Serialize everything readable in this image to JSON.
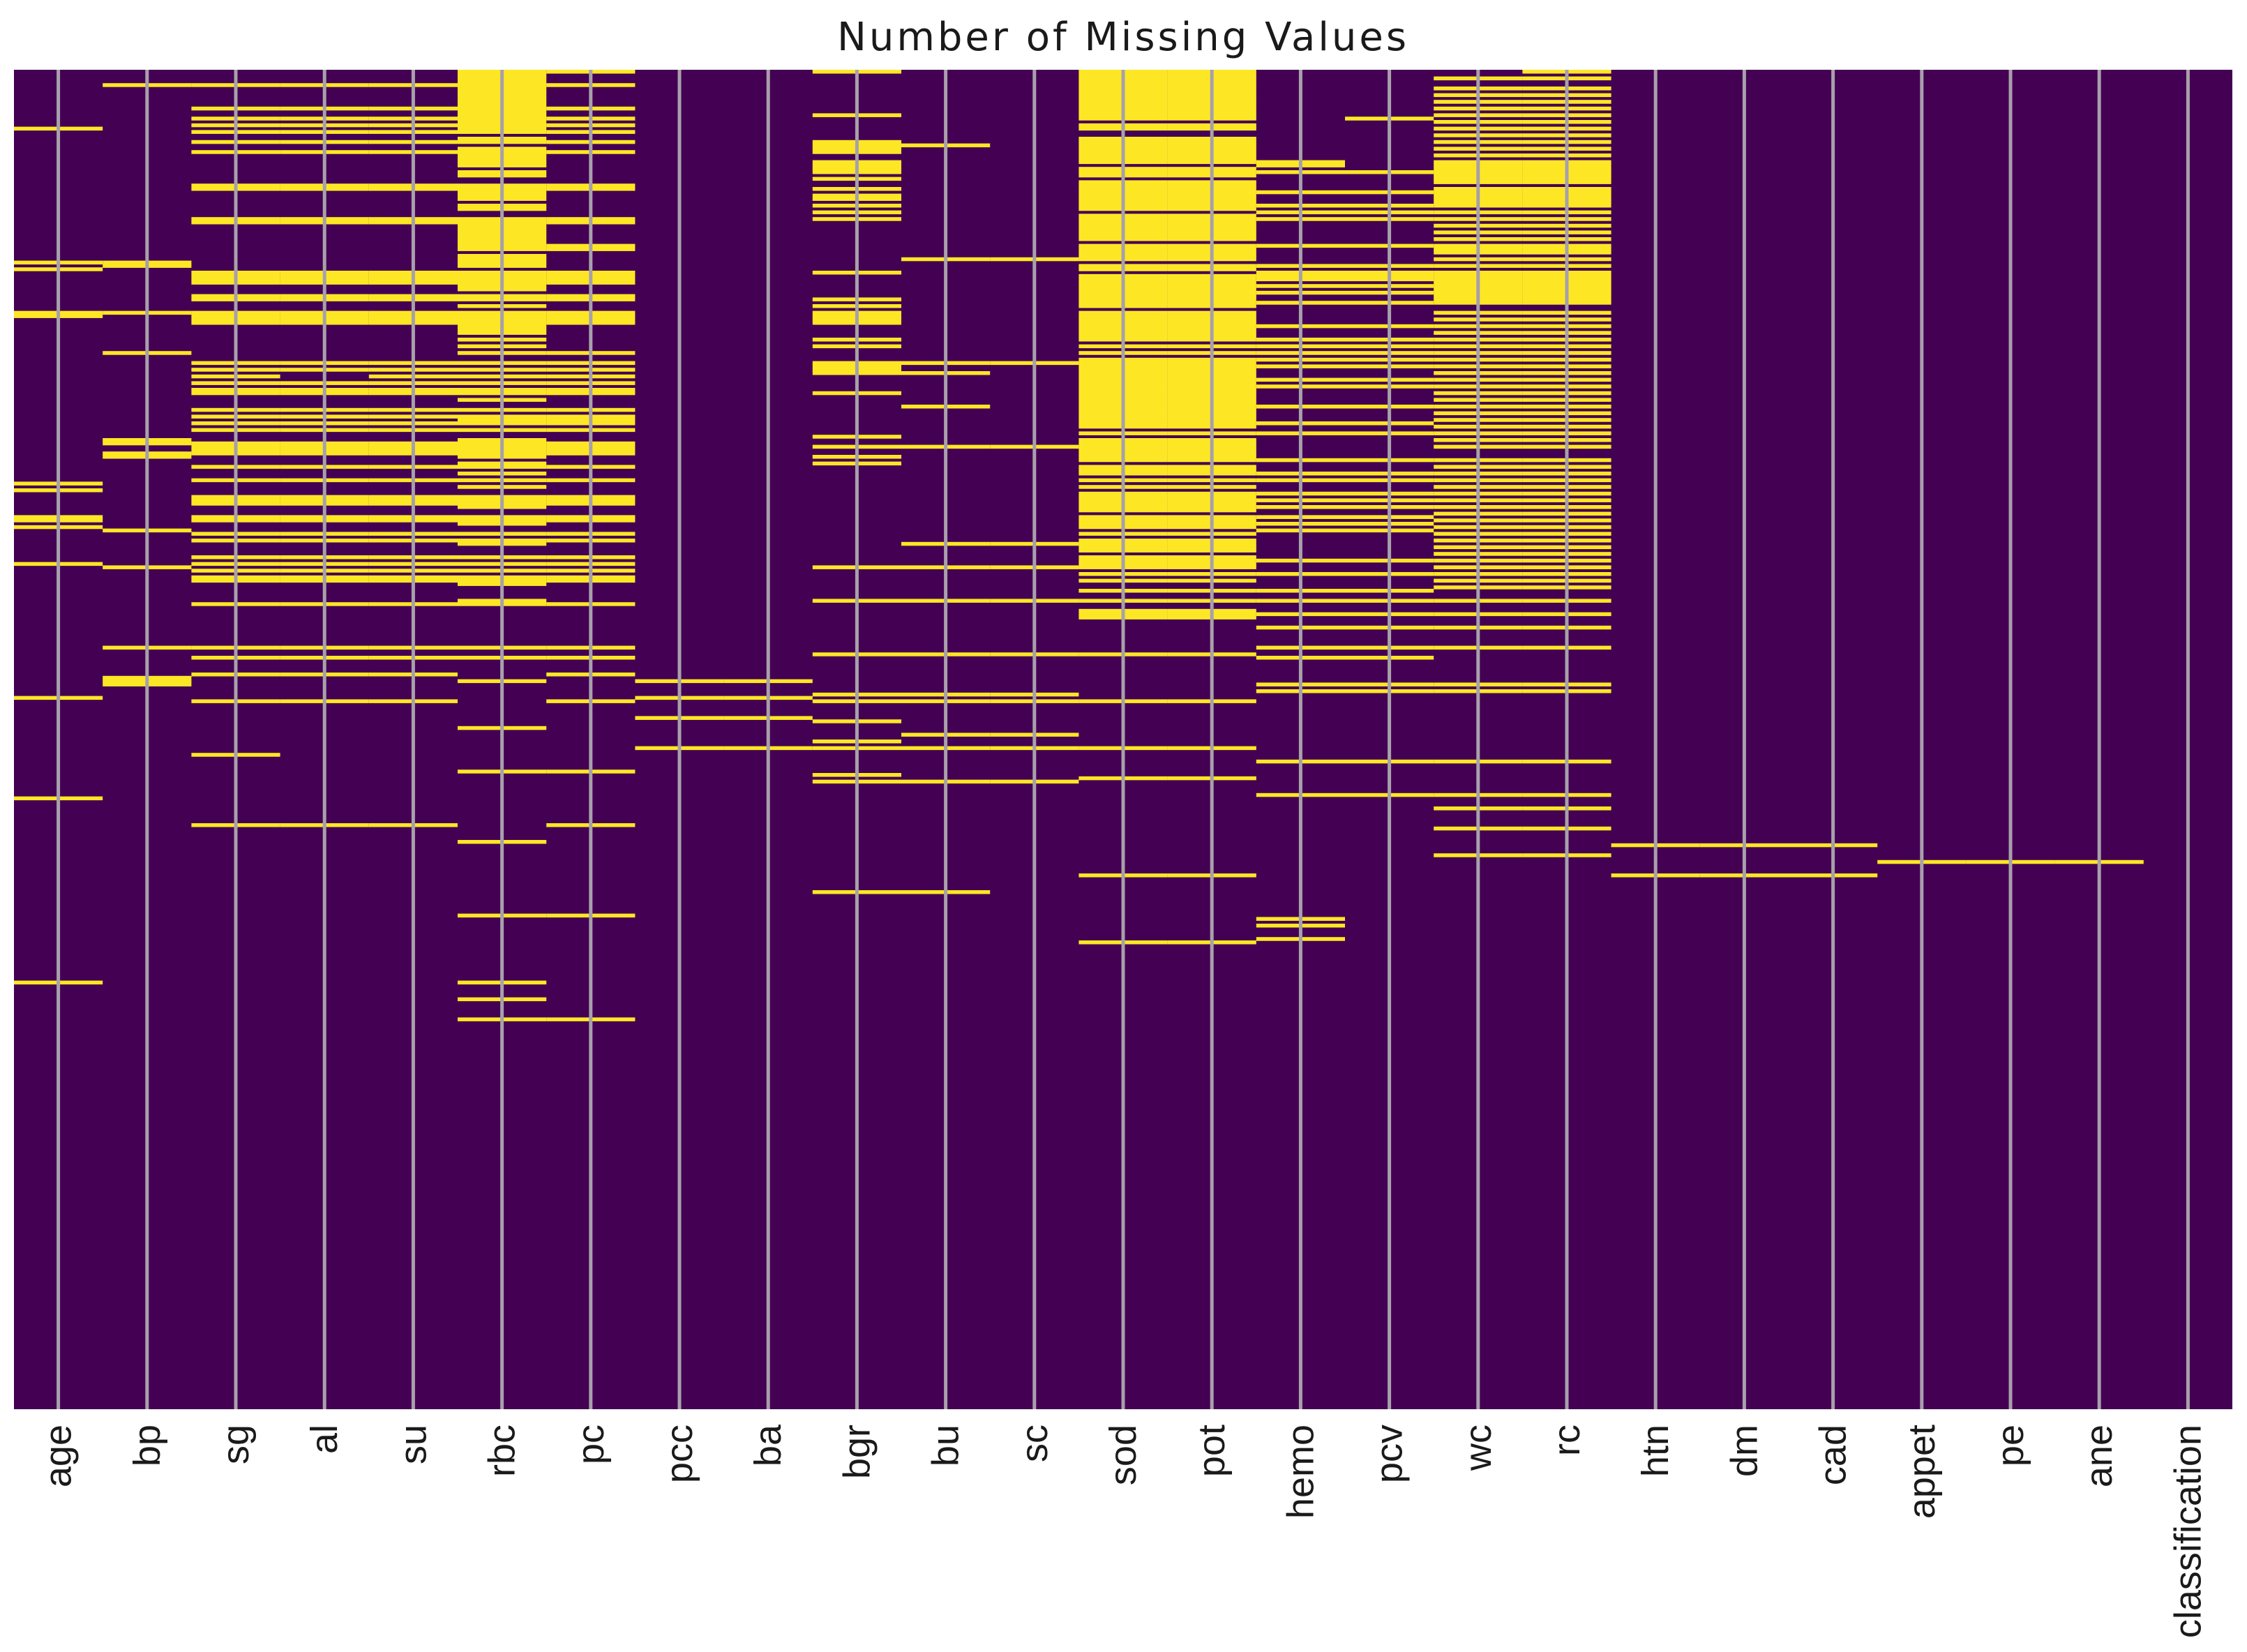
{
  "chart_data": {
    "type": "heatmap",
    "title": "Number of Missing Values",
    "xlabel": "",
    "ylabel": "",
    "n_rows": 400,
    "columns": [
      "age",
      "bp",
      "sg",
      "al",
      "su",
      "rbc",
      "pc",
      "pcc",
      "ba",
      "bgr",
      "bu",
      "sc",
      "sod",
      "pot",
      "hemo",
      "pcv",
      "wc",
      "rc",
      "htn",
      "dm",
      "cad",
      "appet",
      "pe",
      "ane",
      "classification"
    ],
    "value_colors": {
      "present": "#440154",
      "missing": "#fde725"
    },
    "gridline_color": "#a8a0ab",
    "missing_rows": [
      [
        17,
        57,
        59,
        72,
        73,
        123,
        125,
        133,
        134,
        136,
        147,
        187,
        217,
        272
      ],
      [
        4,
        57,
        58,
        72,
        84,
        110,
        111,
        114,
        115,
        137,
        148,
        172,
        181,
        182,
        183
      ],
      [
        4,
        11,
        14,
        16,
        18,
        21,
        24,
        34,
        35,
        44,
        45,
        60,
        61,
        62,
        63,
        67,
        68,
        72,
        73,
        74,
        75,
        87,
        89,
        91,
        93,
        95,
        96,
        101,
        103,
        105,
        107,
        111,
        112,
        113,
        114,
        118,
        122,
        127,
        128,
        129,
        133,
        134,
        138,
        140,
        145,
        147,
        149,
        151,
        152,
        159,
        172,
        175,
        180,
        188,
        204,
        225
      ],
      [
        4,
        11,
        14,
        16,
        18,
        21,
        24,
        34,
        35,
        44,
        45,
        60,
        61,
        62,
        63,
        67,
        68,
        72,
        73,
        74,
        75,
        87,
        89,
        93,
        95,
        96,
        101,
        103,
        105,
        107,
        111,
        112,
        113,
        114,
        118,
        122,
        127,
        128,
        129,
        133,
        134,
        138,
        140,
        145,
        147,
        149,
        151,
        152,
        159,
        172,
        175,
        180,
        188,
        225
      ],
      [
        4,
        11,
        14,
        16,
        18,
        21,
        24,
        34,
        35,
        44,
        45,
        60,
        61,
        62,
        63,
        67,
        68,
        72,
        73,
        74,
        75,
        87,
        89,
        91,
        93,
        95,
        96,
        101,
        103,
        105,
        107,
        111,
        112,
        113,
        114,
        118,
        122,
        127,
        128,
        129,
        133,
        134,
        138,
        140,
        145,
        147,
        149,
        151,
        152,
        159,
        172,
        175,
        180,
        188,
        225
      ],
      [
        0,
        1,
        2,
        3,
        4,
        5,
        6,
        7,
        8,
        9,
        10,
        11,
        12,
        13,
        14,
        15,
        16,
        17,
        18,
        20,
        21,
        23,
        24,
        25,
        26,
        27,
        28,
        30,
        31,
        34,
        35,
        36,
        37,
        38,
        40,
        41,
        44,
        45,
        46,
        47,
        48,
        49,
        50,
        51,
        52,
        53,
        55,
        56,
        57,
        58,
        60,
        61,
        62,
        63,
        64,
        65,
        67,
        68,
        70,
        72,
        73,
        74,
        75,
        76,
        77,
        78,
        80,
        82,
        84,
        87,
        89,
        91,
        93,
        95,
        96,
        98,
        101,
        103,
        104,
        105,
        107,
        110,
        111,
        112,
        113,
        114,
        115,
        117,
        118,
        120,
        122,
        124,
        127,
        128,
        129,
        130,
        133,
        134,
        135,
        138,
        140,
        141,
        145,
        147,
        149,
        151,
        152,
        153,
        158,
        159,
        172,
        175,
        182,
        196,
        209,
        230,
        252,
        272,
        277,
        283
      ],
      [
        0,
        4,
        11,
        14,
        16,
        18,
        21,
        24,
        34,
        35,
        44,
        45,
        52,
        53,
        60,
        61,
        62,
        63,
        67,
        68,
        72,
        73,
        74,
        75,
        84,
        87,
        89,
        91,
        93,
        95,
        96,
        101,
        103,
        104,
        105,
        107,
        111,
        112,
        113,
        114,
        118,
        122,
        127,
        128,
        129,
        133,
        134,
        138,
        140,
        145,
        147,
        149,
        151,
        152,
        159,
        172,
        175,
        180,
        188,
        209,
        225,
        252,
        283
      ],
      [
        182,
        187,
        193,
        202
      ],
      [
        182,
        187,
        193,
        202
      ],
      [
        0,
        13,
        21,
        22,
        23,
        24,
        27,
        28,
        29,
        30,
        32,
        35,
        37,
        38,
        40,
        42,
        44,
        60,
        68,
        70,
        72,
        73,
        74,
        75,
        80,
        82,
        87,
        88,
        89,
        90,
        96,
        109,
        112,
        115,
        117,
        148,
        158,
        174,
        186,
        188,
        194,
        200,
        202,
        210,
        212,
        245
      ],
      [
        22,
        56,
        87,
        90,
        100,
        112,
        141,
        148,
        158,
        174,
        186,
        188,
        198,
        202,
        212,
        245
      ],
      [
        56,
        87,
        112,
        141,
        148,
        158,
        174,
        186,
        188,
        198,
        202,
        212
      ],
      [
        0,
        1,
        2,
        3,
        4,
        5,
        6,
        7,
        8,
        9,
        10,
        11,
        12,
        13,
        14,
        16,
        17,
        20,
        21,
        22,
        23,
        24,
        25,
        26,
        27,
        29,
        30,
        31,
        33,
        34,
        35,
        36,
        37,
        38,
        39,
        40,
        41,
        43,
        44,
        45,
        46,
        47,
        48,
        49,
        50,
        52,
        53,
        54,
        55,
        56,
        58,
        59,
        61,
        62,
        63,
        64,
        65,
        66,
        67,
        68,
        69,
        70,
        72,
        73,
        74,
        75,
        76,
        77,
        78,
        79,
        80,
        82,
        84,
        86,
        87,
        88,
        89,
        90,
        91,
        92,
        93,
        94,
        95,
        96,
        97,
        98,
        99,
        100,
        101,
        102,
        103,
        104,
        105,
        106,
        108,
        110,
        111,
        112,
        113,
        114,
        115,
        116,
        118,
        119,
        120,
        122,
        124,
        126,
        127,
        128,
        129,
        130,
        131,
        133,
        134,
        135,
        136,
        138,
        140,
        141,
        142,
        143,
        145,
        146,
        147,
        148,
        150,
        152,
        155,
        158,
        161,
        162,
        163,
        174,
        188,
        202,
        211,
        240,
        260
      ],
      [
        0,
        1,
        2,
        3,
        4,
        5,
        6,
        7,
        8,
        9,
        10,
        11,
        12,
        13,
        14,
        16,
        17,
        20,
        21,
        22,
        23,
        24,
        25,
        26,
        27,
        29,
        30,
        31,
        33,
        34,
        35,
        36,
        37,
        38,
        39,
        40,
        41,
        43,
        44,
        45,
        46,
        47,
        48,
        49,
        50,
        52,
        53,
        54,
        55,
        56,
        58,
        59,
        61,
        62,
        63,
        64,
        65,
        66,
        67,
        68,
        69,
        70,
        72,
        73,
        74,
        75,
        76,
        77,
        78,
        79,
        80,
        82,
        84,
        86,
        87,
        88,
        89,
        90,
        91,
        92,
        93,
        94,
        95,
        96,
        97,
        98,
        99,
        100,
        101,
        102,
        103,
        104,
        105,
        106,
        108,
        110,
        111,
        112,
        113,
        114,
        115,
        116,
        118,
        119,
        120,
        122,
        124,
        126,
        127,
        128,
        129,
        130,
        131,
        133,
        134,
        135,
        136,
        138,
        140,
        141,
        142,
        143,
        145,
        146,
        147,
        148,
        150,
        152,
        155,
        158,
        161,
        162,
        163,
        174,
        188,
        202,
        211,
        240,
        260
      ],
      [
        27,
        28,
        30,
        36,
        40,
        42,
        44,
        52,
        58,
        60,
        61,
        62,
        64,
        66,
        69,
        76,
        80,
        82,
        84,
        86,
        88,
        92,
        94,
        100,
        105,
        108,
        116,
        120,
        122,
        126,
        128,
        130,
        133,
        135,
        137,
        146,
        150,
        155,
        158,
        162,
        166,
        172,
        175,
        183,
        185,
        206,
        216,
        253,
        255,
        259
      ],
      [
        14,
        30,
        36,
        40,
        42,
        44,
        52,
        58,
        60,
        61,
        62,
        64,
        66,
        69,
        76,
        80,
        82,
        84,
        86,
        88,
        92,
        94,
        100,
        105,
        108,
        116,
        120,
        122,
        126,
        128,
        130,
        133,
        135,
        137,
        146,
        150,
        155,
        158,
        162,
        166,
        172,
        175,
        183,
        185,
        206,
        216
      ],
      [
        2,
        5,
        7,
        9,
        11,
        13,
        15,
        17,
        19,
        21,
        23,
        25,
        27,
        28,
        29,
        30,
        31,
        32,
        33,
        35,
        36,
        37,
        38,
        39,
        40,
        42,
        44,
        46,
        48,
        50,
        52,
        53,
        54,
        56,
        58,
        60,
        61,
        62,
        63,
        64,
        65,
        66,
        67,
        68,
        69,
        72,
        74,
        76,
        78,
        80,
        82,
        84,
        86,
        88,
        90,
        92,
        94,
        96,
        98,
        100,
        102,
        104,
        106,
        108,
        110,
        112,
        116,
        118,
        120,
        122,
        124,
        126,
        128,
        130,
        132,
        134,
        136,
        138,
        140,
        142,
        144,
        146,
        148,
        150,
        152,
        154,
        158,
        162,
        166,
        172,
        183,
        185,
        206,
        216,
        220,
        226,
        234
      ],
      [
        0,
        2,
        5,
        7,
        9,
        11,
        13,
        15,
        17,
        19,
        21,
        23,
        25,
        27,
        28,
        29,
        30,
        31,
        32,
        33,
        35,
        36,
        37,
        38,
        39,
        40,
        42,
        44,
        46,
        48,
        50,
        52,
        53,
        54,
        56,
        58,
        60,
        61,
        62,
        63,
        64,
        65,
        66,
        67,
        68,
        69,
        72,
        74,
        76,
        78,
        80,
        82,
        84,
        86,
        88,
        90,
        92,
        94,
        96,
        98,
        100,
        102,
        104,
        106,
        108,
        110,
        112,
        116,
        118,
        120,
        122,
        124,
        126,
        128,
        130,
        132,
        134,
        136,
        138,
        140,
        142,
        144,
        146,
        148,
        150,
        152,
        154,
        158,
        162,
        166,
        172,
        183,
        185,
        206,
        216,
        220,
        226,
        234
      ],
      [
        231,
        240
      ],
      [
        231,
        240
      ],
      [
        231,
        240
      ],
      [
        236
      ],
      [
        236
      ],
      [
        236
      ],
      []
    ]
  }
}
